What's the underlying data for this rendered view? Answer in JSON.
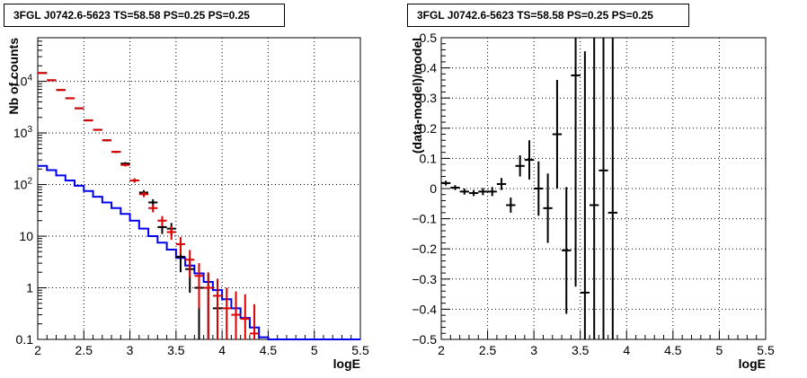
{
  "titles": {
    "left": "3FGL J0742.6-5623 TS=58.58 PS=0.25 PS=0.25",
    "right": "3FGL J0742.6-5623 TS=58.58 PS=0.25 PS=0.25"
  },
  "colors": {
    "model": "#0000ee",
    "data": "#000000",
    "sim": "#dd0000",
    "grid": "#000000"
  },
  "chart_data": [
    {
      "type": "line",
      "title": "3FGL J0742.6-5623 TS=58.58 PS=0.25 PS=0.25",
      "xlabel": "logE",
      "ylabel": "Nb of counts",
      "xlim": [
        2,
        5.5
      ],
      "ylim": [
        0.1,
        70000
      ],
      "yscale": "log",
      "grid": true,
      "x_ticks": [
        "2",
        "2.5",
        "3",
        "3.5",
        "4",
        "4.5",
        "5",
        "5.5"
      ],
      "y_ticks": [
        "0.1",
        "1",
        "10",
        "10^2",
        "10^3",
        "10^4"
      ],
      "series": [
        {
          "kind": "step",
          "color": "#0000ee",
          "bin_edges": [
            2.0,
            2.1,
            2.2,
            2.3,
            2.4,
            2.5,
            2.6,
            2.7,
            2.8,
            2.9,
            3.0,
            3.1,
            3.2,
            3.3,
            3.4,
            3.5,
            3.6,
            3.7,
            3.8,
            3.9,
            4.0,
            4.1,
            4.2,
            4.3,
            4.4,
            4.5,
            5.5
          ],
          "values": [
            230,
            190,
            150,
            120,
            95,
            75,
            58,
            45,
            35,
            27,
            20,
            14,
            10,
            7.5,
            5.5,
            3.8,
            2.7,
            1.9,
            1.3,
            0.9,
            0.6,
            0.4,
            0.26,
            0.17,
            0.11,
            0.1
          ]
        },
        {
          "kind": "errorbar",
          "color": "#000000",
          "x": [
            2.05,
            2.15,
            2.25,
            2.35,
            2.45,
            2.55,
            2.65,
            2.75,
            2.85,
            2.95,
            3.05,
            3.15,
            3.25,
            3.35,
            3.45,
            3.55,
            3.65,
            3.75,
            3.85,
            3.95
          ],
          "y": [
            14500,
            10500,
            6800,
            4700,
            3000,
            1750,
            1150,
            720,
            430,
            255,
            120,
            70,
            45,
            15,
            14,
            4,
            2.3,
            1,
            1,
            0.4
          ],
          "err": [
            130,
            100,
            80,
            70,
            55,
            42,
            34,
            27,
            21,
            16,
            11,
            8,
            7,
            4,
            4,
            2,
            1.5,
            0.9,
            0.9,
            0.6
          ]
        },
        {
          "kind": "errorbar",
          "color": "#dd0000",
          "x": [
            2.05,
            2.15,
            2.25,
            2.35,
            2.45,
            2.55,
            2.65,
            2.75,
            2.85,
            2.95,
            3.05,
            3.15,
            3.25,
            3.35,
            3.45,
            3.55,
            3.65,
            3.75,
            3.85,
            3.95,
            4.05,
            4.15,
            4.25,
            4.35
          ],
          "y": [
            14500,
            10500,
            6800,
            4700,
            3000,
            1750,
            1150,
            720,
            430,
            240,
            120,
            65,
            35,
            20,
            12,
            7,
            3.5,
            1.7,
            1,
            0.7,
            0.4,
            0.3,
            0.25,
            0.13
          ],
          "err": [
            130,
            100,
            80,
            70,
            55,
            42,
            34,
            27,
            21,
            16,
            11,
            8,
            6,
            4.5,
            3.5,
            2.6,
            1.9,
            1.3,
            1,
            0.8,
            0.6,
            0.55,
            0.5,
            0.35
          ]
        }
      ]
    },
    {
      "type": "scatter",
      "title": "3FGL J0742.6-5623 TS=58.58 PS=0.25 PS=0.25",
      "xlabel": "logE",
      "ylabel": "(data-model)/model",
      "xlim": [
        2,
        5.5
      ],
      "ylim": [
        -0.5,
        0.5
      ],
      "grid": true,
      "x_ticks": [
        "2",
        "2.5",
        "3",
        "3.5",
        "4",
        "4.5",
        "5",
        "5.5"
      ],
      "y_ticks": [
        "−0.5",
        "−0.4",
        "−0.3",
        "−0.2",
        "−0.1",
        "0",
        "0.1",
        "0.2",
        "0.3",
        "0.4",
        "0.5"
      ],
      "series": [
        {
          "kind": "errorbar",
          "color": "#000000",
          "x": [
            2.05,
            2.15,
            2.25,
            2.35,
            2.45,
            2.55,
            2.65,
            2.75,
            2.85,
            2.95,
            3.05,
            3.15,
            3.25,
            3.35,
            3.45,
            3.55,
            3.65,
            3.75,
            3.85
          ],
          "y": [
            0.018,
            0.003,
            -0.01,
            -0.015,
            -0.01,
            -0.01,
            0.015,
            -0.055,
            0.075,
            0.095,
            0.0,
            -0.065,
            0.18,
            -0.205,
            0.375,
            -0.345,
            -0.055,
            0.06,
            -0.08
          ],
          "err": [
            0.008,
            0.008,
            0.01,
            0.01,
            0.012,
            0.015,
            0.02,
            0.025,
            0.035,
            0.065,
            0.09,
            0.115,
            0.18,
            0.21,
            0.7,
            0.8,
            0.9,
            0.9,
            0.9
          ]
        }
      ]
    }
  ]
}
